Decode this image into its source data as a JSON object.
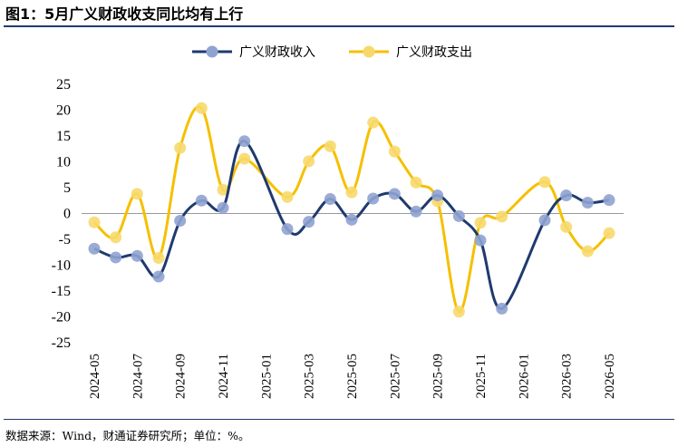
{
  "title": "图1：5月广义财政收支同比均有上行",
  "source": "数据来源：Wind，财通证券研究所；单位：%。",
  "chart_data": {
    "type": "line",
    "ylim": [
      -25,
      25
    ],
    "yticks": [
      25,
      20,
      15,
      10,
      5,
      0,
      -5,
      -10,
      -15,
      -20,
      -25
    ],
    "xtick_labels": [
      "2024-05",
      "2024-07",
      "2024-09",
      "2024-11",
      "2025-01",
      "2025-03",
      "2025-05",
      "2025-07",
      "2025-09",
      "2025-11",
      "2026-01",
      "2026-03",
      "2026-05"
    ],
    "x": [
      "2024-05",
      "2024-06",
      "2024-07",
      "2024-08",
      "2024-09",
      "2024-10",
      "2024-11",
      "2024-12",
      "2025-02",
      "2025-03",
      "2025-04",
      "2025-05",
      "2025-06",
      "2025-07",
      "2025-08",
      "2025-09",
      "2025-10",
      "2025-11",
      "2025-12",
      "2026-02",
      "2026-03",
      "2026-04",
      "2026-05"
    ],
    "legend_position": "top",
    "series": [
      {
        "name": "广义财政收入",
        "color": "#1f3a6e",
        "marker_color": "#8fa3d1",
        "values": [
          -6.8,
          -8.5,
          -8.2,
          -12.2,
          -1.4,
          2.5,
          1.1,
          14.0,
          -3.0,
          -1.6,
          2.8,
          -1.2,
          2.9,
          3.8,
          0.4,
          3.5,
          -0.5,
          -5.2,
          -18.4,
          -1.3,
          3.5,
          2.1,
          2.6
        ]
      },
      {
        "name": "广义财政支出",
        "color": "#f5c000",
        "marker_color": "#f7d96b",
        "values": [
          -1.7,
          -4.6,
          3.8,
          -8.6,
          12.7,
          20.4,
          4.6,
          10.6,
          3.2,
          10.1,
          13.0,
          4.1,
          17.6,
          12.0,
          6.0,
          2.4,
          -19.0,
          -1.8,
          -0.6,
          6.1,
          -2.6,
          -7.3,
          -3.8
        ]
      }
    ]
  }
}
